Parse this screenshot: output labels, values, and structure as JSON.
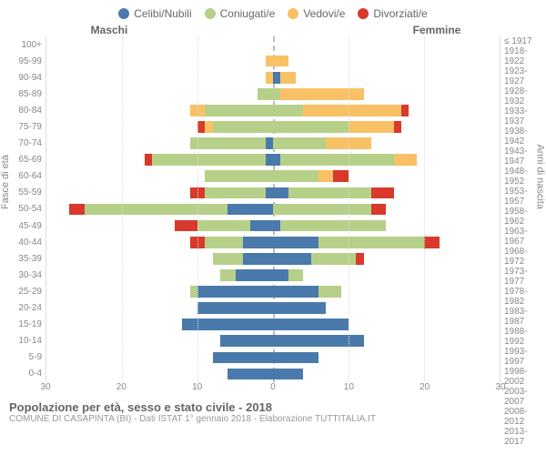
{
  "legend": [
    {
      "label": "Celibi/Nubili",
      "color": "#4a7aab"
    },
    {
      "label": "Coniugati/e",
      "color": "#b6d089"
    },
    {
      "label": "Vedovi/e",
      "color": "#f9c165"
    },
    {
      "label": "Divorziati/e",
      "color": "#d8392b"
    }
  ],
  "header": {
    "left": "Maschi",
    "right": "Femmine"
  },
  "axis": {
    "left_label": "Fasce di età",
    "right_label": "Anni di nascita",
    "x_ticks": [
      30,
      20,
      10,
      0,
      10,
      20,
      30
    ],
    "x_max": 30
  },
  "colors": {
    "background": "#ffffff",
    "grid": "#dddddd",
    "center": "#bbbbbb",
    "text_muted": "#888888"
  },
  "rows": [
    {
      "age": "100+",
      "birth": "≤ 1917",
      "m": [
        0,
        0,
        0,
        0
      ],
      "f": [
        0,
        0,
        0,
        0
      ]
    },
    {
      "age": "95-99",
      "birth": "1918-1922",
      "m": [
        0,
        0,
        1,
        0
      ],
      "f": [
        0,
        0,
        2,
        0
      ]
    },
    {
      "age": "90-94",
      "birth": "1923-1927",
      "m": [
        0,
        0,
        1,
        0
      ],
      "f": [
        1,
        0,
        2,
        0
      ]
    },
    {
      "age": "85-89",
      "birth": "1928-1932",
      "m": [
        0,
        2,
        0,
        0
      ],
      "f": [
        0,
        1,
        11,
        0
      ]
    },
    {
      "age": "80-84",
      "birth": "1933-1937",
      "m": [
        0,
        9,
        2,
        0
      ],
      "f": [
        0,
        4,
        13,
        1
      ]
    },
    {
      "age": "75-79",
      "birth": "1938-1942",
      "m": [
        0,
        8,
        1,
        1
      ],
      "f": [
        0,
        10,
        6,
        1
      ]
    },
    {
      "age": "70-74",
      "birth": "1943-1947",
      "m": [
        1,
        10,
        0,
        0
      ],
      "f": [
        0,
        7,
        6,
        0
      ]
    },
    {
      "age": "65-69",
      "birth": "1948-1952",
      "m": [
        1,
        15,
        0,
        1
      ],
      "f": [
        1,
        15,
        3,
        0
      ]
    },
    {
      "age": "60-64",
      "birth": "1953-1957",
      "m": [
        0,
        9,
        0,
        0
      ],
      "f": [
        0,
        6,
        2,
        2
      ]
    },
    {
      "age": "55-59",
      "birth": "1958-1962",
      "m": [
        1,
        8,
        0,
        2
      ],
      "f": [
        2,
        11,
        0,
        3
      ]
    },
    {
      "age": "50-54",
      "birth": "1963-1967",
      "m": [
        6,
        19,
        0,
        2
      ],
      "f": [
        0,
        13,
        0,
        2
      ]
    },
    {
      "age": "45-49",
      "birth": "1968-1972",
      "m": [
        3,
        7,
        0,
        3
      ],
      "f": [
        1,
        14,
        0,
        0
      ]
    },
    {
      "age": "40-44",
      "birth": "1973-1977",
      "m": [
        4,
        5,
        0,
        2
      ],
      "f": [
        6,
        14,
        0,
        2
      ]
    },
    {
      "age": "35-39",
      "birth": "1978-1982",
      "m": [
        4,
        4,
        0,
        0
      ],
      "f": [
        5,
        6,
        0,
        1
      ]
    },
    {
      "age": "30-34",
      "birth": "1983-1987",
      "m": [
        5,
        2,
        0,
        0
      ],
      "f": [
        2,
        2,
        0,
        0
      ]
    },
    {
      "age": "25-29",
      "birth": "1988-1992",
      "m": [
        10,
        1,
        0,
        0
      ],
      "f": [
        6,
        3,
        0,
        0
      ]
    },
    {
      "age": "20-24",
      "birth": "1993-1997",
      "m": [
        10,
        0,
        0,
        0
      ],
      "f": [
        7,
        0,
        0,
        0
      ]
    },
    {
      "age": "15-19",
      "birth": "1998-2002",
      "m": [
        12,
        0,
        0,
        0
      ],
      "f": [
        10,
        0,
        0,
        0
      ]
    },
    {
      "age": "10-14",
      "birth": "2003-2007",
      "m": [
        7,
        0,
        0,
        0
      ],
      "f": [
        12,
        0,
        0,
        0
      ]
    },
    {
      "age": "5-9",
      "birth": "2008-2012",
      "m": [
        8,
        0,
        0,
        0
      ],
      "f": [
        6,
        0,
        0,
        0
      ]
    },
    {
      "age": "0-4",
      "birth": "2013-2017",
      "m": [
        6,
        0,
        0,
        0
      ],
      "f": [
        4,
        0,
        0,
        0
      ]
    }
  ],
  "footer": {
    "title": "Popolazione per età, sesso e stato civile - 2018",
    "sub": "COMUNE DI CASAPINTA (BI) - Dati ISTAT 1° gennaio 2018 - Elaborazione TUTTITALIA.IT"
  }
}
